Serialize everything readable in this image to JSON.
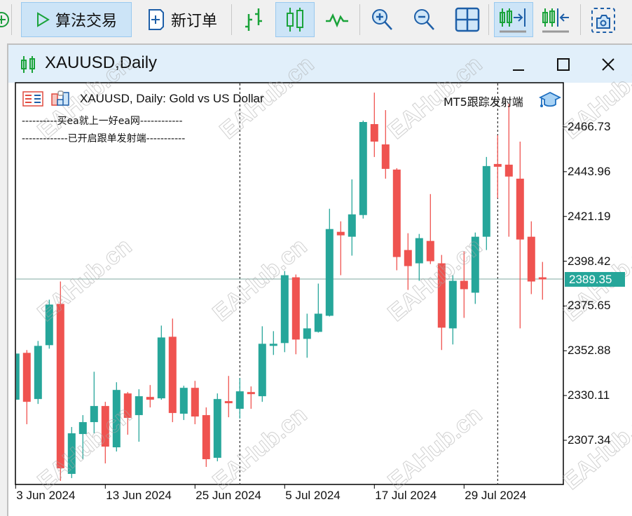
{
  "toolbar": {
    "algo_trading_label": "算法交易",
    "new_order_label": "新订单",
    "items": [
      "add-chart-icon",
      "algo-trading",
      "new-order",
      "bar-chart",
      "candlestick-chart",
      "line-chart",
      "zoom-in",
      "zoom-out",
      "tile-windows",
      "auto-scroll",
      "chart-shift",
      "screenshot"
    ]
  },
  "window": {
    "title": "XAUUSD,Daily",
    "controls": {
      "minimize": "_",
      "maximize": "□",
      "close": "X"
    }
  },
  "chart_header": {
    "symbol_line": "XAUUSD, Daily:  Gold vs US Dollar",
    "line1": "----------买ea就上一好ea网------------",
    "line2": "-------------已开启跟单发射端-----------",
    "ea_name": "MT5跟踪发射端"
  },
  "watermark": "EAHub.cn",
  "colors": {
    "bull": "#26a69a",
    "bear": "#ef5350",
    "current_price_bg": "#26a69a"
  },
  "chart_data": {
    "type": "candlestick",
    "title": "XAUUSD, Daily:  Gold vs US Dollar",
    "price_ticks": [
      "2466.73",
      "2443.96",
      "2421.19",
      "2398.42",
      "2375.65",
      "2352.88",
      "2330.11",
      "2307.34"
    ],
    "date_ticks": [
      {
        "date": "2024-06-03",
        "label": "3 Jun 2024"
      },
      {
        "date": "2024-06-13",
        "label": "13 Jun 2024"
      },
      {
        "date": "2024-06-25",
        "label": "25 Jun 2024"
      },
      {
        "date": "2024-07-05",
        "label": "5 Jul 2024"
      },
      {
        "date": "2024-07-17",
        "label": "17 Jul 2024"
      },
      {
        "date": "2024-07-29",
        "label": "29 Jul 2024"
      }
    ],
    "period_separators": [
      "2024-07-01",
      "2024-08-01"
    ],
    "current_price": "2389.35",
    "ylim": [
      2281.5,
      2486.3
    ],
    "grid": false,
    "columns": [
      "date",
      "open",
      "high",
      "low",
      "close"
    ],
    "candles": [
      [
        "2024-06-03",
        2327.97,
        2353.94,
        2325.48,
        2351.45
      ],
      [
        "2024-06-04",
        2351.81,
        2353.23,
        2315.51,
        2326.9
      ],
      [
        "2024-06-05",
        2328.32,
        2357.86,
        2325.83,
        2355.36
      ],
      [
        "2024-06-06",
        2355.72,
        2378.85,
        2353.94,
        2376.36
      ],
      [
        "2024-06-07",
        2376.71,
        2388.1,
        2286.7,
        2293.1
      ],
      [
        "2024-06-10",
        2290.25,
        2314.09,
        2288.12,
        2310.89
      ],
      [
        "2024-06-11",
        2310.53,
        2320.14,
        2297.72,
        2316.58
      ],
      [
        "2024-06-12",
        2316.58,
        2342.2,
        2310.89,
        2324.77
      ],
      [
        "2024-06-13",
        2324.77,
        2326.9,
        2295.59,
        2304.13
      ],
      [
        "2024-06-14",
        2303.77,
        2336.86,
        2301.64,
        2332.95
      ],
      [
        "2024-06-17",
        2331.17,
        2331.88,
        2310.18,
        2318.72
      ],
      [
        "2024-06-18",
        2320.14,
        2333.3,
        2306.62,
        2329.75
      ],
      [
        "2024-06-19",
        2329.39,
        2335.44,
        2324.05,
        2327.97
      ],
      [
        "2024-06-20",
        2328.68,
        2365.68,
        2327.97,
        2359.63
      ],
      [
        "2024-06-21",
        2359.99,
        2369.24,
        2316.58,
        2321.21
      ],
      [
        "2024-06-24",
        2320.85,
        2335.08,
        2317.65,
        2334.02
      ],
      [
        "2024-06-25",
        2334.02,
        2337.57,
        2315.51,
        2319.43
      ],
      [
        "2024-06-26",
        2320.14,
        2324.05,
        2293.81,
        2297.72
      ],
      [
        "2024-06-27",
        2298.44,
        2331.17,
        2296.66,
        2328.32
      ],
      [
        "2024-06-28",
        2327.26,
        2340.07,
        2319.07,
        2326.54
      ],
      [
        "2024-07-01",
        2323.34,
        2339.0,
        2318.36,
        2332.24
      ],
      [
        "2024-07-02",
        2331.88,
        2334.73,
        2323.34,
        2331.17
      ],
      [
        "2024-07-03",
        2329.75,
        2365.33,
        2326.9,
        2356.43
      ],
      [
        "2024-07-04",
        2355.72,
        2362.84,
        2350.74,
        2356.43
      ],
      [
        "2024-07-05",
        2356.79,
        2393.44,
        2352.16,
        2391.3
      ],
      [
        "2024-07-08",
        2390.23,
        2391.66,
        2351.09,
        2358.57
      ],
      [
        "2024-07-09",
        2358.92,
        2371.73,
        2349.32,
        2364.26
      ],
      [
        "2024-07-10",
        2362.48,
        2387.03,
        2362.13,
        2371.73
      ],
      [
        "2024-07-11",
        2370.66,
        2425.1,
        2370.31,
        2414.78
      ],
      [
        "2024-07-12",
        2413.36,
        2418.7,
        2391.3,
        2411.58
      ],
      [
        "2024-07-15",
        2410.87,
        2440.04,
        2401.26,
        2422.25
      ],
      [
        "2024-07-16",
        2421.9,
        2469.93,
        2420.12,
        2469.22
      ],
      [
        "2024-07-17",
        2468.15,
        2484.16,
        2451.43,
        2459.26
      ],
      [
        "2024-07-18",
        2457.83,
        2475.27,
        2440.4,
        2445.38
      ],
      [
        "2024-07-19",
        2445.03,
        2445.74,
        2393.79,
        2400.55
      ],
      [
        "2024-07-22",
        2404.11,
        2412.65,
        2383.83,
        2395.93
      ],
      [
        "2024-07-23",
        2397.35,
        2412.29,
        2388.45,
        2410.16
      ],
      [
        "2024-07-24",
        2408.73,
        2432.57,
        2396.99,
        2398.42
      ],
      [
        "2024-07-25",
        2397.35,
        2401.62,
        2353.23,
        2364.62
      ],
      [
        "2024-07-26",
        2364.26,
        2391.3,
        2356.08,
        2388.45
      ],
      [
        "2024-07-29",
        2388.45,
        2403.4,
        2369.6,
        2384.18
      ],
      [
        "2024-07-30",
        2382.41,
        2413.0,
        2376.71,
        2410.87
      ],
      [
        "2024-07-31",
        2410.87,
        2451.43,
        2404.11,
        2446.81
      ],
      [
        "2024-08-01",
        2447.87,
        2462.46,
        2430.44,
        2446.45
      ],
      [
        "2024-08-02",
        2447.52,
        2478.47,
        2410.87,
        2441.47
      ],
      [
        "2024-08-05",
        2440.4,
        2459.26,
        2364.26,
        2409.45
      ],
      [
        "2024-08-06",
        2410.87,
        2418.7,
        2381.69,
        2388.1
      ],
      [
        "2024-08-07",
        2390.23,
        2398.06,
        2378.85,
        2389.35
      ]
    ]
  }
}
